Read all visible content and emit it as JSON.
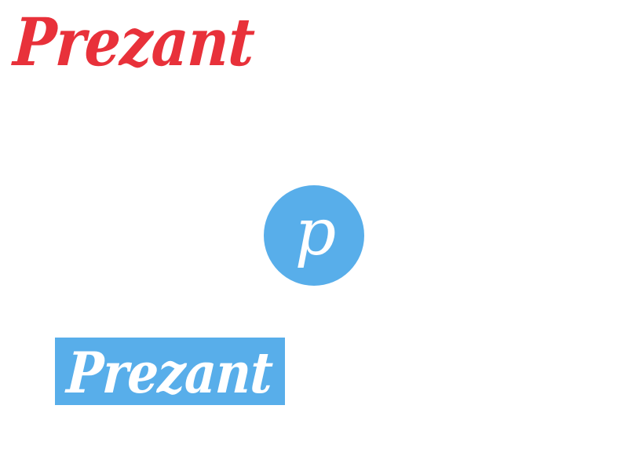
{
  "colors": {
    "red": "#e8313a",
    "blue": "#58aeea",
    "white": "#ffffff"
  },
  "logos": {
    "wordmark": "Prezant",
    "monogram": "p",
    "banner_wordmark": "Prezant"
  }
}
